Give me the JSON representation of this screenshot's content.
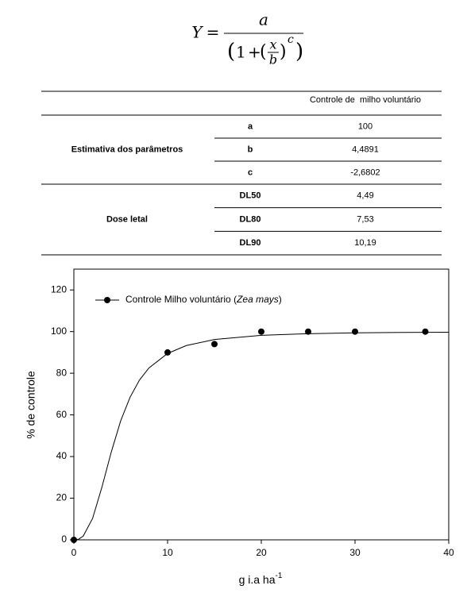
{
  "formula": {
    "lhs": "Y",
    "numerator": "a",
    "one": "1",
    "x": "x",
    "b": "b",
    "c": "c"
  },
  "table": {
    "header": "Controle de  milho voluntário",
    "groups": [
      {
        "label": "Estimativa dos parâmetros",
        "rows": [
          [
            "a",
            "100"
          ],
          [
            "b",
            "4,4891"
          ],
          [
            "c",
            "-2,6802"
          ]
        ]
      },
      {
        "label": "Dose letal",
        "rows": [
          [
            "DL50",
            "4,49"
          ],
          [
            "DL80",
            "7,53"
          ],
          [
            "DL90",
            "10,19"
          ]
        ]
      }
    ]
  },
  "chart_data": {
    "type": "scatter",
    "ylabel": "% de controle",
    "xlabel": "g i.a ha",
    "xlabel_sup": "-1",
    "xlim": [
      0,
      40
    ],
    "xticks": [
      0,
      10,
      20,
      30,
      40
    ],
    "ylim": [
      0,
      130
    ],
    "yticks": [
      0,
      20,
      40,
      60,
      80,
      100,
      120
    ],
    "legend": "upper left",
    "series": [
      {
        "type": "scatter",
        "name_parts": [
          "Controle Milho voluntário (",
          "Zea mays",
          ")"
        ],
        "color": "#000000",
        "x": [
          0,
          10,
          15,
          20,
          25,
          30,
          37.5
        ],
        "values": [
          0,
          90,
          94,
          100,
          100,
          100,
          100
        ]
      },
      {
        "type": "line",
        "color": "#000000",
        "x": [
          0,
          0.5,
          1,
          2,
          3,
          4,
          5,
          6,
          7,
          8,
          10,
          12,
          15,
          20,
          25,
          30,
          35,
          40
        ],
        "values": [
          0,
          0.3,
          1.8,
          10.3,
          25.4,
          42.3,
          57.2,
          68.5,
          76.7,
          82.5,
          89.5,
          93.3,
          96.2,
          98.2,
          99.0,
          99.4,
          99.6,
          99.7
        ]
      }
    ]
  }
}
